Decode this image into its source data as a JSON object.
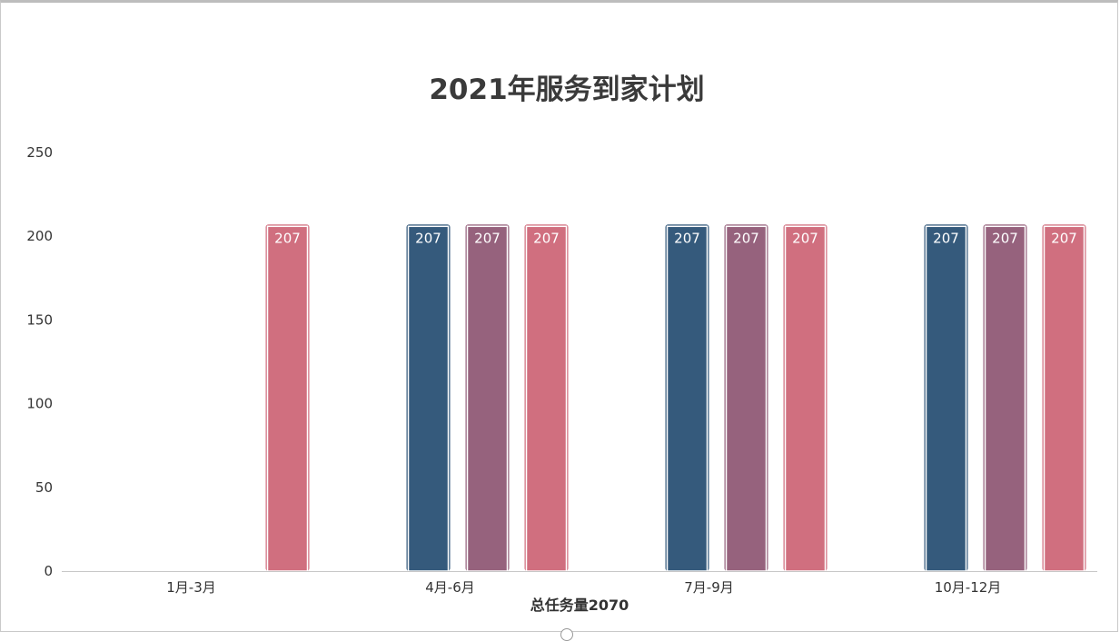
{
  "chart_data": {
    "type": "bar",
    "title": "2021年服务到家计划",
    "xlabel": "总任务量2070",
    "ylabel": "",
    "ylim": [
      0,
      250
    ],
    "yticks": [
      0,
      50,
      100,
      150,
      200,
      250
    ],
    "categories": [
      "1月-3月",
      "4月-6月",
      "7月-9月",
      "10月-12月"
    ],
    "series": [
      {
        "color": "#355a7c",
        "values": [
          null,
          207,
          207,
          207
        ]
      },
      {
        "color": "#96627d",
        "values": [
          null,
          207,
          207,
          207
        ]
      },
      {
        "color": "#d06f7f",
        "values": [
          207,
          207,
          207,
          207
        ]
      }
    ],
    "data_labels": true,
    "grid": false,
    "legend": "none"
  }
}
